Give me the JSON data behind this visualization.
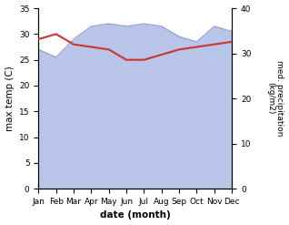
{
  "months": [
    "Jan",
    "Feb",
    "Mar",
    "Apr",
    "May",
    "Jun",
    "Jul",
    "Aug",
    "Sep",
    "Oct",
    "Nov",
    "Dec"
  ],
  "max_temp": [
    29.0,
    30.0,
    28.0,
    27.5,
    27.0,
    25.0,
    25.0,
    26.0,
    27.0,
    27.5,
    28.0,
    28.5
  ],
  "precipitation": [
    270,
    255,
    290,
    315,
    320,
    315,
    320,
    315,
    295,
    285,
    315,
    305
  ],
  "temp_color": "#cc3333",
  "precip_color_fill": "#b8c4e8",
  "precip_color_line": "#8899cc",
  "ylabel_left": "max temp (C)",
  "ylabel_right": "med. precipitation\n(kg/m2)",
  "xlabel": "date (month)",
  "ylim_left": [
    0,
    35
  ],
  "ylim_right": [
    0,
    350
  ],
  "yticks_left": [
    0,
    5,
    10,
    15,
    20,
    25,
    30,
    35
  ],
  "yticks_right": [
    0,
    10,
    20,
    30,
    40
  ],
  "yticks_right_vals": [
    0,
    87.5,
    175,
    262.5,
    350
  ],
  "background_color": "#ffffff"
}
